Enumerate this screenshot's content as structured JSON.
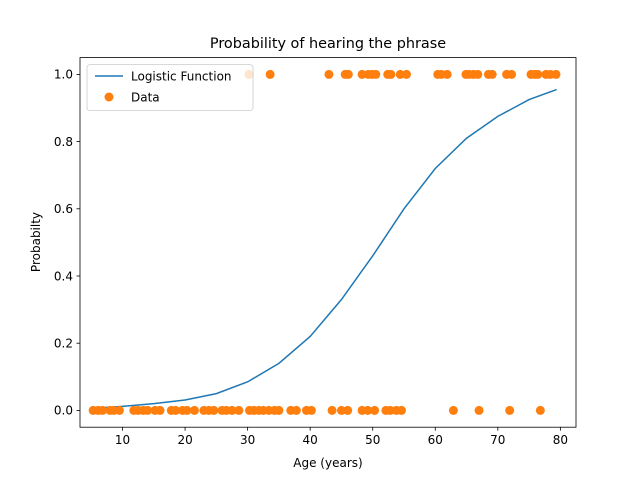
{
  "chart_data": {
    "type": "scatter",
    "title": "Probability of hearing the phrase",
    "xlabel": "Age (years)",
    "ylabel": "Probabilty",
    "xlim": [
      3.2,
      82.5
    ],
    "ylim": [
      -0.05,
      1.05
    ],
    "xticks": [
      10,
      20,
      30,
      40,
      50,
      60,
      70,
      80
    ],
    "yticks": [
      0.0,
      0.2,
      0.4,
      0.6,
      0.8,
      1.0
    ],
    "xtick_labels": [
      "10",
      "20",
      "30",
      "40",
      "50",
      "60",
      "70",
      "80"
    ],
    "ytick_labels": [
      "0.0",
      "0.2",
      "0.4",
      "0.6",
      "0.8",
      "1.0"
    ],
    "grid": false,
    "legend_position": "top-left",
    "series": [
      {
        "name": "Logistic Function",
        "kind": "line",
        "color": "#1f77b4",
        "x": [
          5,
          10,
          15,
          20,
          25,
          30,
          35,
          40,
          45,
          50,
          55,
          60,
          65,
          70,
          75,
          79.4
        ],
        "y": [
          0.006,
          0.012,
          0.02,
          0.031,
          0.05,
          0.085,
          0.14,
          0.22,
          0.33,
          0.46,
          0.6,
          0.72,
          0.81,
          0.875,
          0.925,
          0.955
        ]
      },
      {
        "name": "Data",
        "kind": "scatter",
        "color": "#ff7f0e",
        "x": [
          5.3,
          6.1,
          6.8,
          8.0,
          8.6,
          9.5,
          11.8,
          12.5,
          13.3,
          14.0,
          15.2,
          16.0,
          17.8,
          18.5,
          19.6,
          20.3,
          21.5,
          23.0,
          23.8,
          24.6,
          25.9,
          26.6,
          27.5,
          28.6,
          30.3,
          31.0,
          31.8,
          32.5,
          33.4,
          34.3,
          35.0,
          36.9,
          37.8,
          39.4,
          40.2,
          43.5,
          45.0,
          46.0,
          48.3,
          49.2,
          50.3,
          52.1,
          52.8,
          53.8,
          54.6,
          62.9,
          67.0,
          71.9,
          76.8,
          30.2,
          33.6,
          43.0,
          45.6,
          46.1,
          48.3,
          49.3,
          49.9,
          50.5,
          52.4,
          52.9,
          54.4,
          55.4,
          60.4,
          61.0,
          61.9,
          64.9,
          65.4,
          66.1,
          66.8,
          68.5,
          69.1,
          71.4,
          72.2,
          75.3,
          75.9,
          76.4,
          77.7,
          78.4,
          79.3
        ],
        "y": [
          0,
          0,
          0,
          0,
          0,
          0,
          0,
          0,
          0,
          0,
          0,
          0,
          0,
          0,
          0,
          0,
          0,
          0,
          0,
          0,
          0,
          0,
          0,
          0,
          0,
          0,
          0,
          0,
          0,
          0,
          0,
          0,
          0,
          0,
          0,
          0,
          0,
          0,
          0,
          0,
          0,
          0,
          0,
          0,
          0,
          0,
          0,
          0,
          0,
          1,
          1,
          1,
          1,
          1,
          1,
          1,
          1,
          1,
          1,
          1,
          1,
          1,
          1,
          1,
          1,
          1,
          1,
          1,
          1,
          1,
          1,
          1,
          1,
          1,
          1,
          1,
          1,
          1,
          1
        ]
      }
    ]
  }
}
